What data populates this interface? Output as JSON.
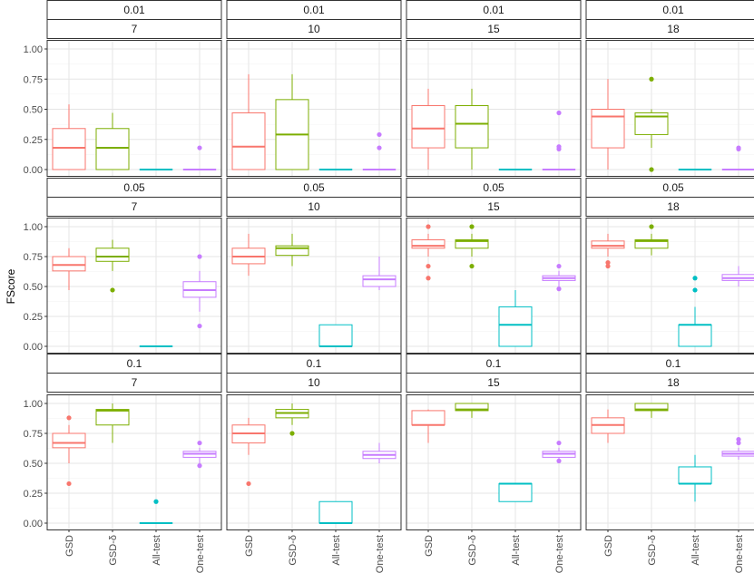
{
  "chart_data": {
    "type": "boxplot",
    "ylabel": "FScore",
    "xlabel": "",
    "ylim": [
      0,
      1
    ],
    "yticks": [
      "0.00",
      "0.25",
      "0.50",
      "0.75",
      "1.00"
    ],
    "categories": [
      "GSD",
      "GSD-δ",
      "All-test",
      "One-test"
    ],
    "colors": {
      "GSD": "#F8766D",
      "GSD-δ": "#7CAE00",
      "All-test": "#00BFC4",
      "One-test": "#C77CFF"
    },
    "grid": true,
    "panels": [
      {
        "row_label": "0.01",
        "col_label": "7",
        "boxes": [
          {
            "q1": 0.0,
            "median": 0.18,
            "q3": 0.34,
            "lower": 0.0,
            "upper": 0.54,
            "outliers": []
          },
          {
            "q1": 0.0,
            "median": 0.18,
            "q3": 0.34,
            "lower": 0.0,
            "upper": 0.47,
            "outliers": []
          },
          {
            "q1": 0.0,
            "median": 0.0,
            "q3": 0.0,
            "lower": 0.0,
            "upper": 0.0,
            "outliers": []
          },
          {
            "q1": 0.0,
            "median": 0.0,
            "q3": 0.0,
            "lower": 0.0,
            "upper": 0.0,
            "outliers": [
              0.18
            ]
          }
        ]
      },
      {
        "row_label": "0.01",
        "col_label": "10",
        "boxes": [
          {
            "q1": 0.0,
            "median": 0.19,
            "q3": 0.47,
            "lower": 0.0,
            "upper": 0.79,
            "outliers": []
          },
          {
            "q1": 0.0,
            "median": 0.29,
            "q3": 0.58,
            "lower": 0.0,
            "upper": 0.79,
            "outliers": []
          },
          {
            "q1": 0.0,
            "median": 0.0,
            "q3": 0.0,
            "lower": 0.0,
            "upper": 0.0,
            "outliers": []
          },
          {
            "q1": 0.0,
            "median": 0.0,
            "q3": 0.0,
            "lower": 0.0,
            "upper": 0.0,
            "outliers": [
              0.18,
              0.29
            ]
          }
        ]
      },
      {
        "row_label": "0.01",
        "col_label": "15",
        "boxes": [
          {
            "q1": 0.18,
            "median": 0.34,
            "q3": 0.53,
            "lower": 0.0,
            "upper": 0.67,
            "outliers": []
          },
          {
            "q1": 0.18,
            "median": 0.38,
            "q3": 0.53,
            "lower": 0.0,
            "upper": 0.67,
            "outliers": []
          },
          {
            "q1": 0.0,
            "median": 0.0,
            "q3": 0.0,
            "lower": 0.0,
            "upper": 0.0,
            "outliers": []
          },
          {
            "q1": 0.0,
            "median": 0.0,
            "q3": 0.0,
            "lower": 0.0,
            "upper": 0.0,
            "outliers": [
              0.17,
              0.19,
              0.47
            ]
          }
        ]
      },
      {
        "row_label": "0.01",
        "col_label": "18",
        "boxes": [
          {
            "q1": 0.18,
            "median": 0.44,
            "q3": 0.5,
            "lower": 0.0,
            "upper": 0.75,
            "outliers": []
          },
          {
            "q1": 0.29,
            "median": 0.44,
            "q3": 0.47,
            "lower": 0.18,
            "upper": 0.5,
            "outliers": [
              0.0,
              0.75
            ]
          },
          {
            "q1": 0.0,
            "median": 0.0,
            "q3": 0.0,
            "lower": 0.0,
            "upper": 0.0,
            "outliers": []
          },
          {
            "q1": 0.0,
            "median": 0.0,
            "q3": 0.0,
            "lower": 0.0,
            "upper": 0.0,
            "outliers": [
              0.17,
              0.18
            ]
          }
        ]
      },
      {
        "row_label": "0.05",
        "col_label": "7",
        "boxes": [
          {
            "q1": 0.63,
            "median": 0.68,
            "q3": 0.75,
            "lower": 0.47,
            "upper": 0.82,
            "outliers": []
          },
          {
            "q1": 0.71,
            "median": 0.75,
            "q3": 0.82,
            "lower": 0.63,
            "upper": 0.89,
            "outliers": [
              0.47
            ]
          },
          {
            "q1": 0.0,
            "median": 0.0,
            "q3": 0.0,
            "lower": 0.0,
            "upper": 0.0,
            "outliers": []
          },
          {
            "q1": 0.41,
            "median": 0.47,
            "q3": 0.54,
            "lower": 0.29,
            "upper": 0.63,
            "outliers": [
              0.17,
              0.75
            ]
          }
        ]
      },
      {
        "row_label": "0.05",
        "col_label": "10",
        "boxes": [
          {
            "q1": 0.69,
            "median": 0.75,
            "q3": 0.82,
            "lower": 0.59,
            "upper": 0.94,
            "outliers": []
          },
          {
            "q1": 0.76,
            "median": 0.82,
            "q3": 0.84,
            "lower": 0.67,
            "upper": 0.94,
            "outliers": []
          },
          {
            "q1": 0.0,
            "median": 0.0,
            "q3": 0.18,
            "lower": 0.0,
            "upper": 0.18,
            "outliers": []
          },
          {
            "q1": 0.5,
            "median": 0.56,
            "q3": 0.59,
            "lower": 0.47,
            "upper": 0.75,
            "outliers": []
          }
        ]
      },
      {
        "row_label": "0.05",
        "col_label": "15",
        "boxes": [
          {
            "q1": 0.82,
            "median": 0.84,
            "q3": 0.89,
            "lower": 0.75,
            "upper": 0.94,
            "outliers": [
              0.57,
              0.67,
              1.0
            ]
          },
          {
            "q1": 0.82,
            "median": 0.88,
            "q3": 0.89,
            "lower": 0.75,
            "upper": 0.94,
            "outliers": [
              0.67,
              1.0
            ]
          },
          {
            "q1": 0.0,
            "median": 0.18,
            "q3": 0.33,
            "lower": 0.0,
            "upper": 0.47,
            "outliers": []
          },
          {
            "q1": 0.55,
            "median": 0.57,
            "q3": 0.59,
            "lower": 0.5,
            "upper": 0.63,
            "outliers": [
              0.48,
              0.67
            ]
          }
        ]
      },
      {
        "row_label": "0.05",
        "col_label": "18",
        "boxes": [
          {
            "q1": 0.82,
            "median": 0.84,
            "q3": 0.88,
            "lower": 0.75,
            "upper": 0.94,
            "outliers": [
              0.67,
              0.7
            ]
          },
          {
            "q1": 0.82,
            "median": 0.88,
            "q3": 0.89,
            "lower": 0.76,
            "upper": 0.94,
            "outliers": [
              1.0
            ]
          },
          {
            "q1": 0.0,
            "median": 0.18,
            "q3": 0.18,
            "lower": 0.0,
            "upper": 0.33,
            "outliers": [
              0.47,
              0.57
            ]
          },
          {
            "q1": 0.55,
            "median": 0.57,
            "q3": 0.6,
            "lower": 0.5,
            "upper": 0.67,
            "outliers": []
          }
        ]
      },
      {
        "row_label": "0.1",
        "col_label": "7",
        "boxes": [
          {
            "q1": 0.63,
            "median": 0.67,
            "q3": 0.75,
            "lower": 0.5,
            "upper": 0.82,
            "outliers": [
              0.33,
              0.88
            ]
          },
          {
            "q1": 0.82,
            "median": 0.94,
            "q3": 0.95,
            "lower": 0.67,
            "upper": 1.0,
            "outliers": []
          },
          {
            "q1": 0.0,
            "median": 0.0,
            "q3": 0.0,
            "lower": 0.0,
            "upper": 0.0,
            "outliers": [
              0.18
            ]
          },
          {
            "q1": 0.55,
            "median": 0.58,
            "q3": 0.6,
            "lower": 0.5,
            "upper": 0.63,
            "outliers": [
              0.48,
              0.67
            ]
          }
        ]
      },
      {
        "row_label": "0.1",
        "col_label": "10",
        "boxes": [
          {
            "q1": 0.67,
            "median": 0.75,
            "q3": 0.82,
            "lower": 0.57,
            "upper": 0.88,
            "outliers": [
              0.33
            ]
          },
          {
            "q1": 0.88,
            "median": 0.92,
            "q3": 0.95,
            "lower": 0.82,
            "upper": 1.0,
            "outliers": [
              0.75
            ]
          },
          {
            "q1": 0.0,
            "median": 0.0,
            "q3": 0.18,
            "lower": 0.0,
            "upper": 0.18,
            "outliers": []
          },
          {
            "q1": 0.54,
            "median": 0.57,
            "q3": 0.6,
            "lower": 0.5,
            "upper": 0.67,
            "outliers": []
          }
        ]
      },
      {
        "row_label": "0.1",
        "col_label": "15",
        "boxes": [
          {
            "q1": 0.82,
            "median": 0.82,
            "q3": 0.94,
            "lower": 0.67,
            "upper": 0.95,
            "outliers": []
          },
          {
            "q1": 0.94,
            "median": 0.95,
            "q3": 1.0,
            "lower": 0.88,
            "upper": 1.0,
            "outliers": []
          },
          {
            "q1": 0.18,
            "median": 0.33,
            "q3": 0.33,
            "lower": 0.18,
            "upper": 0.33,
            "outliers": []
          },
          {
            "q1": 0.55,
            "median": 0.58,
            "q3": 0.6,
            "lower": 0.53,
            "upper": 0.63,
            "outliers": [
              0.52,
              0.67
            ]
          }
        ]
      },
      {
        "row_label": "0.1",
        "col_label": "18",
        "boxes": [
          {
            "q1": 0.75,
            "median": 0.82,
            "q3": 0.88,
            "lower": 0.67,
            "upper": 0.95,
            "outliers": []
          },
          {
            "q1": 0.94,
            "median": 0.95,
            "q3": 1.0,
            "lower": 0.88,
            "upper": 1.0,
            "outliers": []
          },
          {
            "q1": 0.33,
            "median": 0.33,
            "q3": 0.47,
            "lower": 0.18,
            "upper": 0.57,
            "outliers": []
          },
          {
            "q1": 0.56,
            "median": 0.58,
            "q3": 0.6,
            "lower": 0.53,
            "upper": 0.63,
            "outliers": [
              0.67,
              0.7
            ]
          }
        ]
      }
    ]
  }
}
